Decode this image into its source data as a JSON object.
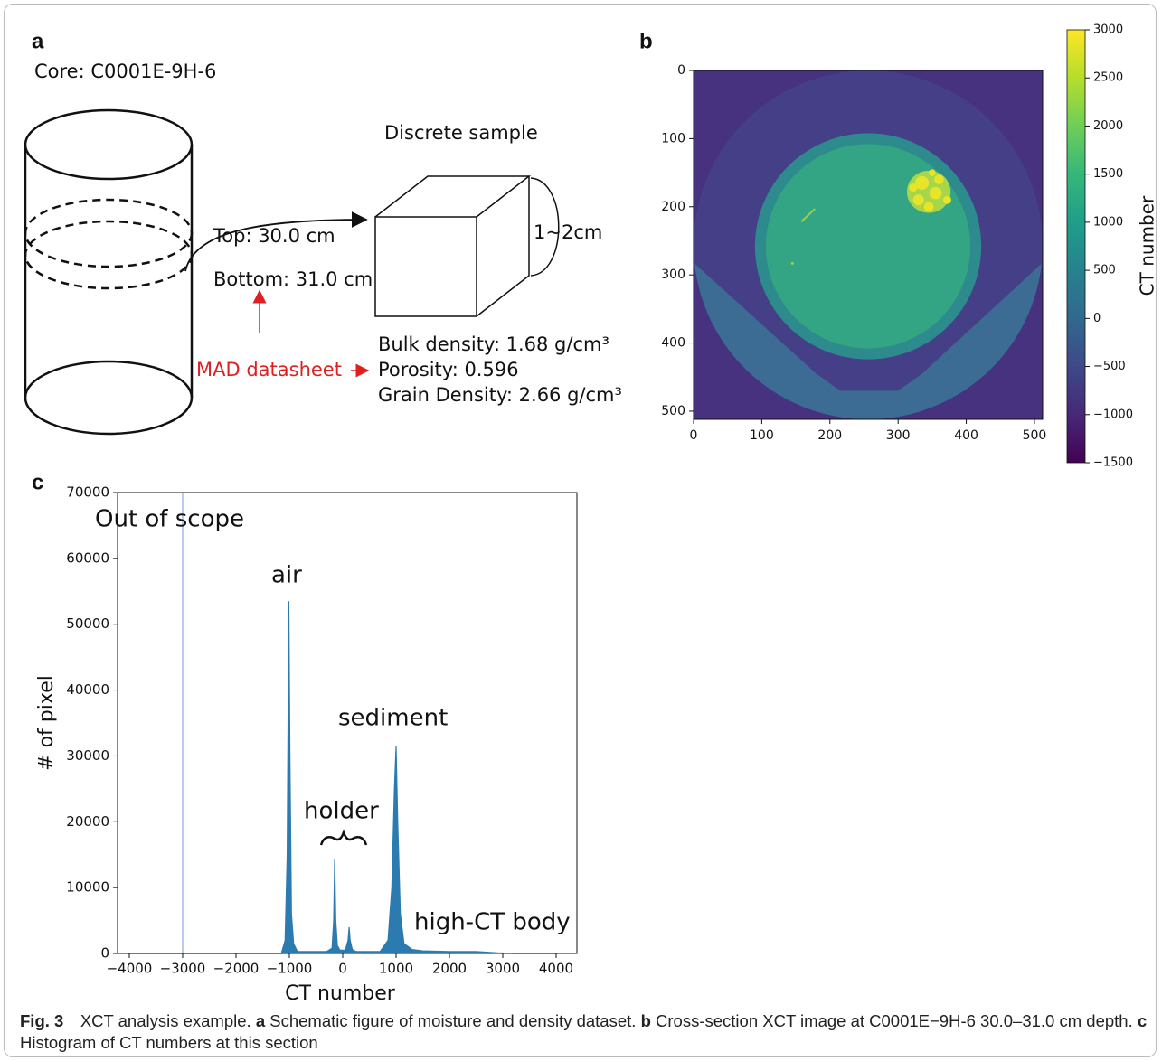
{
  "panel_a": {
    "panel_label": "a",
    "core": "Core: C0001E-9H-6",
    "sample_title": "Discrete sample",
    "top": "Top: 30.0 cm",
    "bottom": "Bottom: 31.0 cm",
    "size": "1~2cm",
    "source": "MAD datasheet",
    "properties": [
      "Bulk density: 1.68 g/cm³",
      "Porosity: 0.596",
      "Grain Density: 2.66 g/cm³"
    ]
  },
  "chart_data": [
    {
      "type": "image",
      "panel_label": "b",
      "xlim": [
        0,
        512
      ],
      "ylim": [
        512,
        0
      ],
      "xticks": [
        0,
        100,
        200,
        300,
        400,
        500
      ],
      "yticks": [
        0,
        100,
        200,
        300,
        400,
        500
      ],
      "colorbar": {
        "label": "CT number",
        "colormap": "viridis",
        "lim": [
          -1500,
          3000
        ],
        "ticks": [
          {
            "value": -1500,
            "label": "−1500"
          },
          {
            "value": -1000,
            "label": "−1000"
          },
          {
            "value": -500,
            "label": "−500"
          },
          0,
          500,
          1000,
          1500,
          2000,
          2500,
          3000
        ]
      }
    },
    {
      "type": "area",
      "panel_label": "c",
      "xlabel": "CT number",
      "ylabel": "# of pixel",
      "color": "#2c7bb0",
      "xlim": [
        -4220,
        4390
      ],
      "ylim": [
        0,
        70000
      ],
      "xticks": [
        {
          "value": -4000,
          "label": "−4000"
        },
        {
          "value": -3000,
          "label": "−3000"
        },
        {
          "value": -2000,
          "label": "−2000"
        },
        {
          "value": -1000,
          "label": "−1000"
        },
        0,
        1000,
        2000,
        3000,
        4000
      ],
      "yticks": [
        0,
        10000,
        20000,
        30000,
        40000,
        50000,
        60000,
        70000
      ],
      "x": [
        -4000,
        -1150,
        -1080,
        -1040,
        -1010,
        -990,
        -960,
        -920,
        -850,
        -300,
        -200,
        -170,
        -150,
        -130,
        -100,
        -50,
        50,
        100,
        120,
        140,
        180,
        250,
        700,
        850,
        920,
        970,
        1000,
        1030,
        1080,
        1150,
        1300,
        1500,
        2000,
        2500,
        2900,
        3200,
        4000
      ],
      "values": [
        0,
        0,
        2000,
        15000,
        53500,
        30000,
        6000,
        1500,
        300,
        300,
        800,
        5000,
        14300,
        5000,
        1200,
        500,
        500,
        2000,
        4000,
        2000,
        600,
        300,
        300,
        2000,
        10000,
        25000,
        31500,
        20000,
        6000,
        1500,
        600,
        400,
        300,
        300,
        100,
        0,
        0
      ],
      "vline": {
        "x": -3000,
        "color": "#aab6e6"
      },
      "annotations": [
        "Out of scope",
        "air",
        "holder",
        "sediment",
        "high-CT body"
      ]
    }
  ],
  "caption": {
    "figure": "Fig. 3",
    "title": "XCT analysis example.",
    "parts": [
      {
        "label": "a",
        "text": "Schematic figure of moisture and density dataset."
      },
      {
        "label": "b",
        "text": "Cross-section XCT image at C0001E−9H-6 30.0–31.0 cm depth."
      },
      {
        "label": "c",
        "text": "Histogram of CT numbers at this section"
      }
    ]
  }
}
